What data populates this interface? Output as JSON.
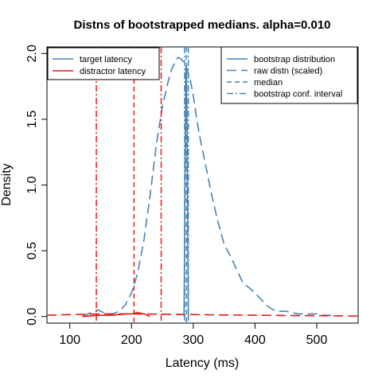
{
  "chart_data": {
    "type": "line",
    "title": "Distns of bootstrapped medians. alpha=0.010",
    "xlabel": "Latency (ms)",
    "ylabel": "Density",
    "xlim": [
      63,
      567
    ],
    "ylim": [
      -0.05,
      2.05
    ],
    "x_ticks": [
      100,
      200,
      300,
      400,
      500
    ],
    "y_ticks": [
      0.0,
      0.5,
      1.0,
      1.5,
      2.0
    ],
    "x_tick_labels": [
      "100",
      "200",
      "300",
      "400",
      "500"
    ],
    "y_tick_labels": [
      "0.0",
      "0.5",
      "1.0",
      "1.5",
      "2.0"
    ],
    "grid": false,
    "colors": {
      "target": "#4682b4",
      "distractor": "#e41a1c"
    },
    "legend_left": {
      "placement": "top-left",
      "entries": [
        {
          "label": "target latency",
          "color": "#4682b4",
          "dash": "solid"
        },
        {
          "label": "distractor latency",
          "color": "#e41a1c",
          "dash": "solid"
        }
      ]
    },
    "legend_right": {
      "placement": "top-right",
      "entries": [
        {
          "label": "bootstrap distribution",
          "color": "#4682b4",
          "dash": "solid"
        },
        {
          "label": "raw distn (scaled)",
          "color": "#4682b4",
          "dash": "long"
        },
        {
          "label": "median",
          "color": "#4682b4",
          "dash": "dash"
        },
        {
          "label": "bootstrap conf. interval",
          "color": "#4682b4",
          "dash": "dotdash"
        }
      ]
    },
    "series": [
      {
        "role": "target-raw-distn",
        "color": "#4682b4",
        "dash": "long",
        "x": [
          120,
          130,
          140,
          145,
          150,
          160,
          170,
          180,
          190,
          200,
          210,
          220,
          230,
          240,
          250,
          260,
          265,
          270,
          275,
          280,
          285,
          290,
          295,
          300,
          305,
          310,
          320,
          330,
          340,
          350,
          360,
          370,
          380,
          390,
          400,
          410,
          420,
          430,
          440,
          450,
          460,
          470,
          480,
          490,
          500,
          510,
          520,
          530
        ],
        "y": [
          0.0,
          0.02,
          0.04,
          0.05,
          0.04,
          0.02,
          0.02,
          0.04,
          0.09,
          0.18,
          0.33,
          0.58,
          0.92,
          1.3,
          1.6,
          1.8,
          1.88,
          1.93,
          1.97,
          1.96,
          1.93,
          1.88,
          1.8,
          1.68,
          1.52,
          1.38,
          1.15,
          0.92,
          0.72,
          0.55,
          0.46,
          0.36,
          0.26,
          0.22,
          0.18,
          0.13,
          0.08,
          0.05,
          0.04,
          0.04,
          0.03,
          0.02,
          0.02,
          0.02,
          0.02,
          0.01,
          0.01,
          0.0
        ]
      },
      {
        "role": "distractor-bootstrap",
        "color": "#e41a1c",
        "dash": "solid",
        "x": [
          120,
          150,
          170,
          190,
          200,
          210,
          220,
          230
        ],
        "y": [
          0.0,
          0.01,
          0.01,
          0.02,
          0.02,
          0.03,
          0.02,
          0.0
        ]
      },
      {
        "role": "distractor-raw-distn",
        "color": "#e41a1c",
        "dash": "long",
        "x": [
          63,
          100,
          150,
          200,
          250,
          300,
          350,
          400,
          450,
          500,
          567
        ],
        "y": [
          0.01,
          0.015,
          0.02,
          0.02,
          0.018,
          0.015,
          0.012,
          0.01,
          0.008,
          0.006,
          0.004
        ]
      },
      {
        "role": "target-bootstrap",
        "color": "#4682b4",
        "dash": "solid",
        "x": [
          285,
          286,
          287,
          288,
          289,
          290,
          291,
          292
        ],
        "y": [
          0.0,
          0.6,
          1.4,
          1.9,
          1.9,
          1.4,
          0.6,
          0.0
        ]
      }
    ],
    "vlines": [
      {
        "role": "distractor-ci-low",
        "x": 143,
        "color": "#e41a1c",
        "dash": "dotdash"
      },
      {
        "role": "distractor-median",
        "x": 204,
        "color": "#e41a1c",
        "dash": "dash"
      },
      {
        "role": "distractor-ci-high",
        "x": 248,
        "color": "#e41a1c",
        "dash": "dotdash"
      },
      {
        "role": "target-ci-low",
        "x": 286,
        "color": "#4682b4",
        "dash": "dotdash"
      },
      {
        "role": "target-median",
        "x": 289,
        "color": "#4682b4",
        "dash": "dash"
      },
      {
        "role": "target-ci-high",
        "x": 292,
        "color": "#4682b4",
        "dash": "dotdash"
      }
    ]
  }
}
